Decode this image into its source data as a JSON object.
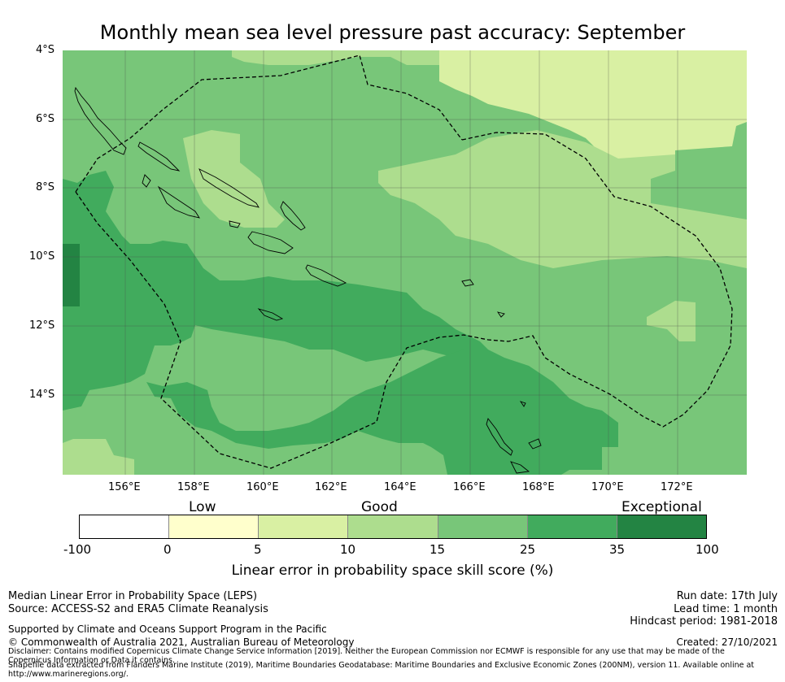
{
  "title": "Monthly mean sea level pressure past accuracy: September",
  "axes": {
    "lat_labels": [
      "4°S",
      "6°S",
      "8°S",
      "10°S",
      "12°S",
      "14°S"
    ],
    "lon_labels": [
      "156°E",
      "158°E",
      "160°E",
      "162°E",
      "164°E",
      "166°E",
      "168°E",
      "170°E",
      "172°E"
    ]
  },
  "colorbar": {
    "categories": [
      "Low",
      "Good",
      "Exceptional"
    ],
    "ticks": [
      "-100",
      "0",
      "5",
      "10",
      "15",
      "25",
      "35",
      "100"
    ],
    "colors": [
      "#ffffff",
      "#ffffcc",
      "#d9f0a3",
      "#addd8e",
      "#78c679",
      "#41ab5d",
      "#238443"
    ],
    "label": "Linear error in probability space skill score (%)"
  },
  "footer": {
    "left1": "Median Linear Error in Probability Space (LEPS)",
    "left2": "Source: ACCESS-S2 and ERA5 Climate Reanalysis",
    "right1": "Run date: 17th July",
    "right2": "Lead time: 1 month",
    "right3": "Hindcast period: 1981-2018",
    "support": "Supported by Climate and Oceans Support Program in the Pacific",
    "copyright": "© Commonwealth of Australia 2021, Australian Bureau of Meteorology",
    "created": "Created: 27/10/2021",
    "disclaimer": "Disclaimer: Contains modified Copernicus Climate Change Service Information [2019]. Neither the European Commission nor ECMWF is responsible for any use that may be made of the Copernicus Information or Data it contains.",
    "shapefile": "Shapefile data extracted from Flanders Marine Institute (2019), Maritime Boundaries Geodatabase: Maritime Boundaries and Exclusive Economic Zones (200NM), version 11. Available online at http://www.marineregions.org/."
  }
}
